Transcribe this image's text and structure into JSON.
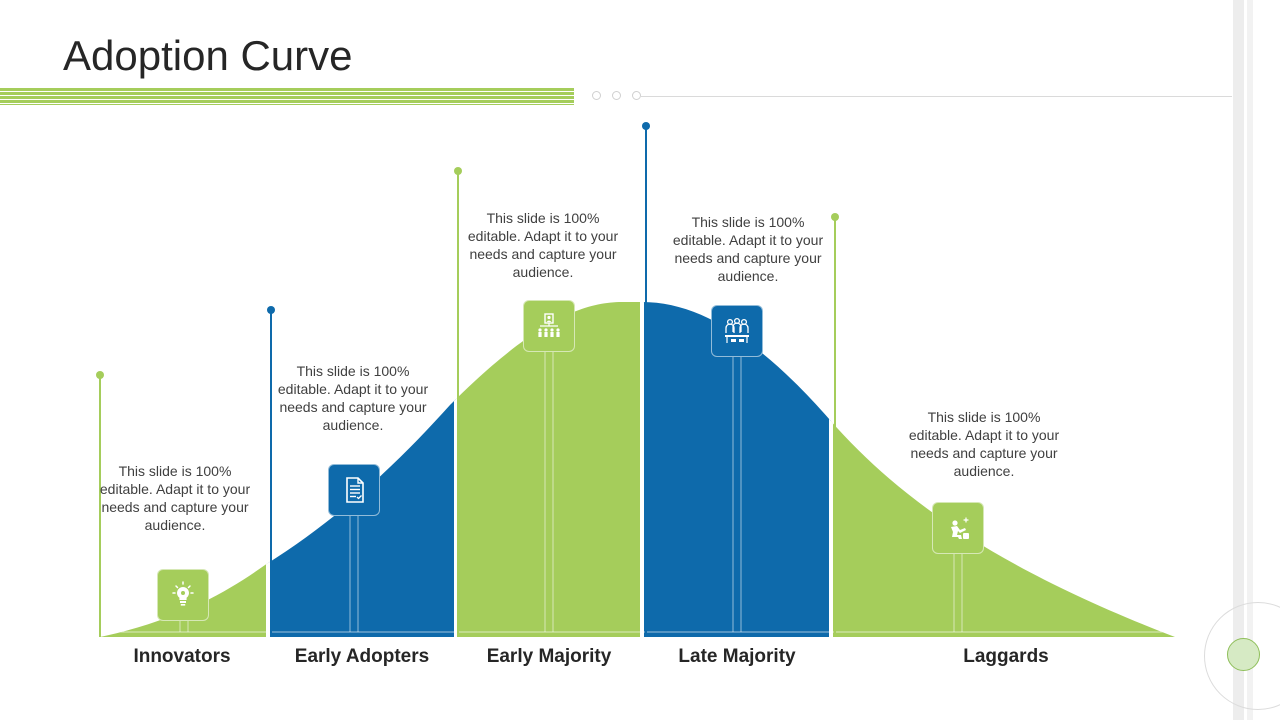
{
  "slide": {
    "title": "Adoption Curve"
  },
  "colors": {
    "green": "#a5cd5b",
    "blue": "#0e6aab",
    "text": "#404040",
    "title": "#262626"
  },
  "segments": [
    {
      "label": "Innovators",
      "text": "This slide is 100% editable. Adapt it to your needs and capture your audience.",
      "icon": "lightbulb-icon",
      "color": "green"
    },
    {
      "label": "Early Adopters",
      "text": "This slide is 100% editable. Adapt it to your needs and capture your audience.",
      "icon": "document-icon",
      "color": "blue"
    },
    {
      "label": "Early Majority",
      "text": "This slide is 100% editable. Adapt it to your needs and capture your audience.",
      "icon": "org-chart-icon",
      "color": "green"
    },
    {
      "label": "Late Majority",
      "text": "This slide is 100% editable. Adapt it to your needs and capture your audience.",
      "icon": "team-meeting-icon",
      "color": "blue"
    },
    {
      "label": "Laggards",
      "text": "This slide is 100% editable. Adapt it to your needs and capture your audience.",
      "icon": "person-kneeling-icon",
      "color": "green"
    }
  ]
}
